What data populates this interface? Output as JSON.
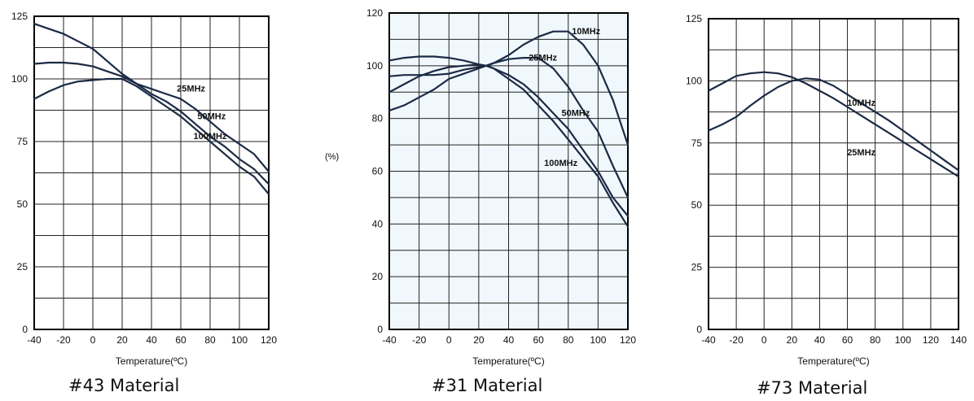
{
  "chart_data": [
    {
      "type": "line",
      "caption": "#43 Material",
      "xlabel": "Temperature(ºC)",
      "ylabel": "",
      "xlim": [
        -40,
        120
      ],
      "ylim": [
        0,
        125
      ],
      "xticks": [
        -40,
        -20,
        0,
        20,
        40,
        60,
        80,
        100,
        120
      ],
      "yticks": [
        0,
        25,
        50,
        75,
        100,
        125
      ],
      "grid": true,
      "background": "#ffffff",
      "series": [
        {
          "name": "25MHz",
          "x": [
            -40,
            -30,
            -20,
            -10,
            0,
            10,
            20,
            30,
            40,
            50,
            60,
            70,
            80,
            90,
            100,
            110,
            120
          ],
          "y": [
            122,
            120,
            118,
            115,
            112,
            107,
            102,
            98,
            96,
            94,
            92,
            88,
            83,
            78,
            74,
            70,
            63
          ]
        },
        {
          "name": "50MHz",
          "x": [
            -40,
            -30,
            -20,
            -10,
            0,
            10,
            20,
            30,
            40,
            50,
            60,
            70,
            80,
            90,
            100,
            110,
            120
          ],
          "y": [
            106,
            106.5,
            106.5,
            106,
            105,
            103,
            101,
            98,
            94,
            91,
            87,
            82,
            77,
            73,
            68,
            64,
            58
          ]
        },
        {
          "name": "100MHz",
          "x": [
            -40,
            -30,
            -20,
            -10,
            0,
            10,
            20,
            30,
            40,
            50,
            60,
            70,
            80,
            90,
            100,
            110,
            120
          ],
          "y": [
            92,
            95,
            97.5,
            99,
            99.5,
            100,
            100,
            97,
            93,
            89,
            85,
            80,
            75,
            70,
            65,
            61,
            54
          ]
        }
      ],
      "annotations": [
        {
          "text": "25MHz",
          "x": 67,
          "y": 95
        },
        {
          "text": "50MHz",
          "x": 81,
          "y": 84
        },
        {
          "text": "100MHz",
          "x": 80,
          "y": 76
        }
      ]
    },
    {
      "type": "line",
      "caption": "#31 Material",
      "xlabel": "Temperature(ºC)",
      "ylabel": "(%)",
      "xlim": [
        -40,
        120
      ],
      "ylim": [
        0,
        120
      ],
      "xticks": [
        -40,
        -20,
        0,
        20,
        40,
        60,
        80,
        100,
        120
      ],
      "yticks": [
        0,
        20,
        40,
        60,
        80,
        100,
        120
      ],
      "grid": true,
      "background": "#f0f8fd",
      "series": [
        {
          "name": "10MHz",
          "x": [
            -40,
            -30,
            -20,
            -10,
            0,
            10,
            20,
            25,
            30,
            40,
            50,
            60,
            70,
            80,
            90,
            100,
            110,
            120
          ],
          "y": [
            83,
            85,
            88,
            91,
            95,
            97,
            99,
            100,
            101,
            104,
            108,
            111,
            113,
            113,
            108,
            100,
            87,
            70
          ]
        },
        {
          "name": "25MHz",
          "x": [
            -40,
            -30,
            -20,
            -10,
            0,
            10,
            20,
            25,
            30,
            40,
            50,
            60,
            70,
            80,
            90,
            100,
            110,
            120
          ],
          "y": [
            96,
            96.5,
            96.5,
            96.5,
            97,
            98.5,
            99.5,
            100,
            101,
            102.5,
            103,
            103,
            99,
            92,
            83,
            75,
            62,
            50
          ]
        },
        {
          "name": "50MHz",
          "x": [
            -40,
            -30,
            -20,
            -10,
            0,
            10,
            20,
            25,
            30,
            40,
            50,
            60,
            70,
            80,
            90,
            100,
            110,
            120
          ],
          "y": [
            102,
            103,
            103.5,
            103.5,
            103,
            102,
            100.5,
            100,
            99,
            96.5,
            93,
            88,
            82,
            76,
            68,
            60,
            50,
            43
          ]
        },
        {
          "name": "100MHz",
          "x": [
            -40,
            -30,
            -20,
            -10,
            0,
            10,
            20,
            25,
            30,
            40,
            50,
            60,
            70,
            80,
            90,
            100,
            110,
            120
          ],
          "y": [
            90,
            93,
            96,
            98,
            99.5,
            100,
            100.5,
            100,
            99,
            95,
            91,
            85,
            79,
            72,
            65,
            58,
            48,
            39
          ]
        }
      ],
      "annotations": [
        {
          "text": "10MHz",
          "x": 92,
          "y": 112
        },
        {
          "text": "25MHz",
          "x": 63,
          "y": 102
        },
        {
          "text": "50MHz",
          "x": 85,
          "y": 81
        },
        {
          "text": "100MHz",
          "x": 75,
          "y": 62
        }
      ]
    },
    {
      "type": "line",
      "caption": "#73 Material",
      "xlabel": "Temperature(ºC)",
      "ylabel": "",
      "xlim": [
        -40,
        140
      ],
      "ylim": [
        0,
        125
      ],
      "xticks": [
        -40,
        -20,
        0,
        20,
        40,
        60,
        80,
        100,
        120,
        140
      ],
      "yticks": [
        0,
        25,
        50,
        75,
        100,
        125
      ],
      "grid": true,
      "background": "#ffffff",
      "series": [
        {
          "name": "10MHz",
          "x": [
            -40,
            -30,
            -20,
            -10,
            0,
            10,
            20,
            30,
            40,
            50,
            60,
            70,
            80,
            90,
            100,
            110,
            120,
            130,
            140
          ],
          "y": [
            80,
            82.5,
            85.5,
            90,
            94,
            97.5,
            100,
            101,
            100.5,
            98,
            94.5,
            91,
            87.5,
            84,
            80,
            76,
            72,
            68,
            64
          ]
        },
        {
          "name": "25MHz",
          "x": [
            -40,
            -30,
            -20,
            -10,
            0,
            10,
            20,
            30,
            40,
            50,
            60,
            70,
            80,
            90,
            100,
            110,
            120,
            130,
            140
          ],
          "y": [
            96,
            99,
            102,
            103,
            103.5,
            103,
            101.5,
            99,
            96,
            93,
            89.5,
            86,
            82.5,
            79,
            75.5,
            72,
            68.5,
            65,
            61.5
          ]
        }
      ],
      "annotations": [
        {
          "text": "10MHz",
          "x": 70,
          "y": 90
        },
        {
          "text": "25MHz",
          "x": 70,
          "y": 70
        }
      ]
    }
  ]
}
